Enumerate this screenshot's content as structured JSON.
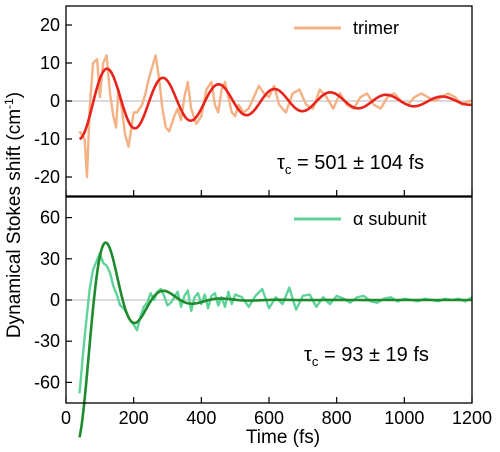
{
  "chart_data": {
    "type": "line",
    "xlabel": "Time (fs)",
    "ylabel": "Dynamical Stokes shift (cm",
    "ylabel_sup": "-1",
    "ylabel_close": ")",
    "xlim": [
      0,
      1200
    ],
    "x_ticks": [
      0,
      200,
      400,
      600,
      800,
      1000,
      1200
    ],
    "grid": false,
    "panels": [
      {
        "id": "top",
        "ylim": [
          -25,
          25
        ],
        "y_ticks": [
          -20,
          -10,
          0,
          10,
          20
        ],
        "legend": {
          "label": "trimer",
          "position": "top-right",
          "color": "#f4b183"
        },
        "annotation": {
          "symbol": "τ",
          "sub": "c",
          "text": " = 501 ± 104 fs"
        },
        "series": [
          {
            "name": "trimer",
            "role": "raw",
            "color": "#f4b183",
            "x": [
              40,
              55,
              62,
              70,
              80,
              92,
              100,
              110,
              120,
              130,
              140,
              148,
              155,
              165,
              175,
              185,
              200,
              210,
              225,
              235,
              245,
              255,
              265,
              275,
              285,
              295,
              305,
              320,
              330,
              340,
              350,
              360,
              370,
              385,
              400,
              415,
              430,
              440,
              450,
              460,
              470,
              480,
              490,
              500,
              510,
              525,
              540,
              555,
              570,
              585,
              600,
              615,
              630,
              650,
              670,
              690,
              710,
              730,
              750,
              770,
              790,
              810,
              830,
              850,
              870,
              890,
              910,
              930,
              950,
              970,
              990,
              1010,
              1030,
              1050,
              1070,
              1090,
              1110,
              1130,
              1150,
              1170,
              1190,
              1200
            ],
            "y": [
              -8,
              -10,
              -20,
              -2,
              10,
              11,
              1,
              10,
              12,
              2,
              -4,
              -7,
              3,
              -2,
              -9,
              -12,
              -3,
              -3,
              -1,
              2,
              6,
              9,
              12,
              6,
              -2,
              -7,
              -8,
              -4,
              -2,
              -5,
              1,
              5,
              -2,
              -6,
              -4,
              3,
              5,
              -1,
              -3,
              3,
              5,
              1,
              -3,
              -4,
              -1,
              -3,
              -2,
              1,
              4,
              2,
              1,
              4,
              -1,
              -3,
              2,
              3,
              -1,
              -2,
              3,
              1,
              -2,
              2,
              -1,
              -2,
              1,
              2,
              -1,
              -2,
              1,
              2,
              0,
              -1,
              1,
              2,
              1,
              0,
              1,
              2,
              1,
              -1,
              0,
              0
            ]
          },
          {
            "name": "trimer",
            "role": "fit",
            "color": "#e8231c",
            "tau": 501,
            "amp": 10,
            "period": 165,
            "x0": 40,
            "y0": -10
          }
        ]
      },
      {
        "id": "bottom",
        "ylim": [
          -75,
          75
        ],
        "y_ticks": [
          -60,
          -30,
          0,
          30,
          60
        ],
        "legend": {
          "label": "α subunit",
          "position": "top-right",
          "color": "#5fd39a"
        },
        "annotation": {
          "symbol": "τ",
          "sub": "c",
          "text": " = 93 ± 19 fs"
        },
        "series": [
          {
            "name": "α subunit",
            "role": "raw",
            "color": "#5fd39a",
            "x": [
              40,
              50,
              60,
              70,
              80,
              90,
              100,
              110,
              120,
              130,
              140,
              150,
              160,
              170,
              180,
              190,
              200,
              210,
              220,
              230,
              240,
              250,
              260,
              270,
              280,
              290,
              300,
              310,
              320,
              330,
              340,
              350,
              360,
              370,
              380,
              390,
              400,
              410,
              420,
              430,
              440,
              450,
              460,
              470,
              480,
              490,
              500,
              520,
              540,
              560,
              580,
              600,
              620,
              640,
              660,
              680,
              700,
              720,
              740,
              760,
              780,
              800,
              820,
              840,
              860,
              880,
              900,
              920,
              940,
              960,
              980,
              1000,
              1020,
              1040,
              1060,
              1080,
              1100,
              1120,
              1140,
              1160,
              1180,
              1200
            ],
            "y": [
              -68,
              -40,
              -15,
              8,
              22,
              28,
              34,
              27,
              25,
              20,
              10,
              4,
              -4,
              -6,
              -10,
              -15,
              -18,
              -22,
              -12,
              -5,
              -2,
              5,
              0,
              6,
              8,
              3,
              -4,
              -2,
              2,
              6,
              -5,
              3,
              7,
              -8,
              2,
              5,
              -3,
              4,
              -6,
              3,
              5,
              -4,
              2,
              -5,
              6,
              -3,
              4,
              2,
              -5,
              3,
              8,
              -6,
              2,
              -3,
              9,
              -7,
              3,
              4,
              -5,
              2,
              -3,
              3,
              1,
              -2,
              2,
              3,
              -1,
              -2,
              1,
              2,
              -1,
              1,
              0,
              -1,
              1,
              0,
              -1,
              1,
              0,
              1,
              -1,
              2
            ]
          },
          {
            "name": "α subunit",
            "role": "fit",
            "color": "#1f8a2e",
            "tau": 93,
            "amp": 100,
            "period": 170,
            "x0": 40,
            "y0": -68
          }
        ]
      }
    ]
  }
}
